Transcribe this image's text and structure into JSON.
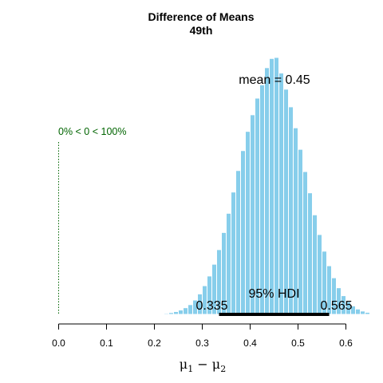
{
  "chart_data": {
    "type": "bar",
    "title": "Difference of Means",
    "subtitle": "49th",
    "xlabel": "μ1 − μ2",
    "xlabel_parts": {
      "mu": "μ",
      "sub1": "1",
      "minus": " − ",
      "sub2": "2"
    },
    "xlim": [
      0.0,
      0.65
    ],
    "x_ticks": [
      "0.0",
      "0.1",
      "0.2",
      "0.3",
      "0.4",
      "0.5",
      "0.6"
    ],
    "x_tick_values": [
      0.0,
      0.1,
      0.2,
      0.3,
      0.4,
      0.5,
      0.6
    ],
    "grid": false,
    "bar_color": "#87ceeb",
    "bar_edge_color": "#ffffff",
    "bin_width": 0.01,
    "bins": [
      [
        0.205,
        0.15
      ],
      [
        0.215,
        0.25
      ],
      [
        0.225,
        0.4
      ],
      [
        0.235,
        0.7
      ],
      [
        0.245,
        1.1
      ],
      [
        0.255,
        1.7
      ],
      [
        0.265,
        2.6
      ],
      [
        0.275,
        3.8
      ],
      [
        0.285,
        5.6
      ],
      [
        0.295,
        8.0
      ],
      [
        0.305,
        11.2
      ],
      [
        0.315,
        15.0
      ],
      [
        0.325,
        19.6
      ],
      [
        0.335,
        25.3
      ],
      [
        0.345,
        32.0
      ],
      [
        0.355,
        39.5
      ],
      [
        0.365,
        47.8
      ],
      [
        0.375,
        56.2
      ],
      [
        0.385,
        64.0
      ],
      [
        0.395,
        71.5
      ],
      [
        0.405,
        78.0
      ],
      [
        0.415,
        84.5
      ],
      [
        0.425,
        89.7
      ],
      [
        0.435,
        96.4
      ],
      [
        0.445,
        100.0
      ],
      [
        0.455,
        100.4
      ],
      [
        0.465,
        94.3
      ],
      [
        0.475,
        88.0
      ],
      [
        0.485,
        81.1
      ],
      [
        0.495,
        72.9
      ],
      [
        0.505,
        64.5
      ],
      [
        0.515,
        55.8
      ],
      [
        0.525,
        47.5
      ],
      [
        0.535,
        38.9
      ],
      [
        0.545,
        31.2
      ],
      [
        0.555,
        24.7
      ],
      [
        0.565,
        19.0
      ],
      [
        0.575,
        14.3
      ],
      [
        0.585,
        10.4
      ],
      [
        0.595,
        7.3
      ],
      [
        0.605,
        5.0
      ],
      [
        0.615,
        3.3
      ],
      [
        0.625,
        2.1
      ],
      [
        0.635,
        1.3
      ],
      [
        0.645,
        0.8
      ]
    ],
    "hdi_line_color": "#000000",
    "comparison_color": "#006400",
    "annotations": {
      "mean_text": "mean = 0.45",
      "comparison_value": 0,
      "comparison_text": "0% < 0 < 100%",
      "hdi_label": "95% HDI",
      "hdi_low": 0.335,
      "hdi_high": 0.565,
      "hdi_low_text": "0.335",
      "hdi_high_text": "0.565"
    }
  }
}
